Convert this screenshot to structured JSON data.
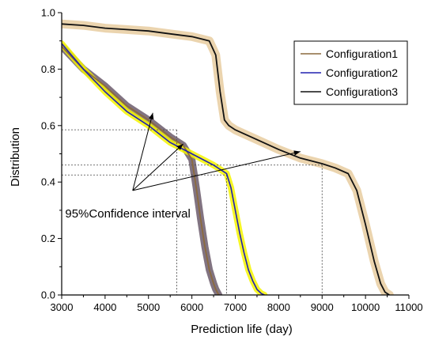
{
  "chart_data": {
    "type": "line",
    "xlabel": "Prediction life (day)",
    "ylabel": "Distribution",
    "xlim": [
      3000,
      11000
    ],
    "ylim": [
      0.0,
      1.0
    ],
    "x_ticks": [
      "3000",
      "4000",
      "5000",
      "6000",
      "7000",
      "8000",
      "9000",
      "10000",
      "11000"
    ],
    "y_ticks": [
      "0.0",
      "0.2",
      "0.4",
      "0.6",
      "0.8",
      "1.0"
    ],
    "legend_position": "top-right",
    "annotation": "95%Confidence interval",
    "series": [
      {
        "name": "Configuration1",
        "color": "#8b6a3e",
        "band_color": "#6b5b6b",
        "x": [
          3000,
          3500,
          4000,
          4500,
          5000,
          5500,
          5800,
          6000,
          6100,
          6200,
          6300,
          6400,
          6500,
          6550,
          6620
        ],
        "y": [
          0.88,
          0.8,
          0.74,
          0.67,
          0.62,
          0.56,
          0.53,
          0.48,
          0.38,
          0.27,
          0.17,
          0.09,
          0.04,
          0.02,
          0.0
        ]
      },
      {
        "name": "Configuration2",
        "color": "#2020b0",
        "band_color": "#f5f500",
        "x": [
          3000,
          3500,
          4000,
          4500,
          5000,
          5500,
          6000,
          6500,
          6800,
          6900,
          7000,
          7100,
          7200,
          7300,
          7400,
          7500,
          7600,
          7670
        ],
        "y": [
          0.89,
          0.8,
          0.72,
          0.65,
          0.6,
          0.54,
          0.5,
          0.46,
          0.43,
          0.38,
          0.3,
          0.22,
          0.15,
          0.09,
          0.05,
          0.02,
          0.005,
          0.0
        ]
      },
      {
        "name": "Configuration3",
        "color": "#111111",
        "band_color": "#e8cca0",
        "x": [
          3000,
          3500,
          4000,
          4500,
          5000,
          5500,
          6000,
          6400,
          6550,
          6650,
          6750,
          6850,
          7000,
          7500,
          8000,
          8500,
          9000,
          9300,
          9600,
          9800,
          10000,
          10200,
          10350,
          10450,
          10550
        ],
        "y": [
          0.96,
          0.955,
          0.945,
          0.94,
          0.935,
          0.925,
          0.915,
          0.9,
          0.85,
          0.72,
          0.62,
          0.6,
          0.585,
          0.55,
          0.515,
          0.485,
          0.465,
          0.45,
          0.43,
          0.37,
          0.25,
          0.12,
          0.04,
          0.01,
          0.0
        ]
      }
    ]
  }
}
